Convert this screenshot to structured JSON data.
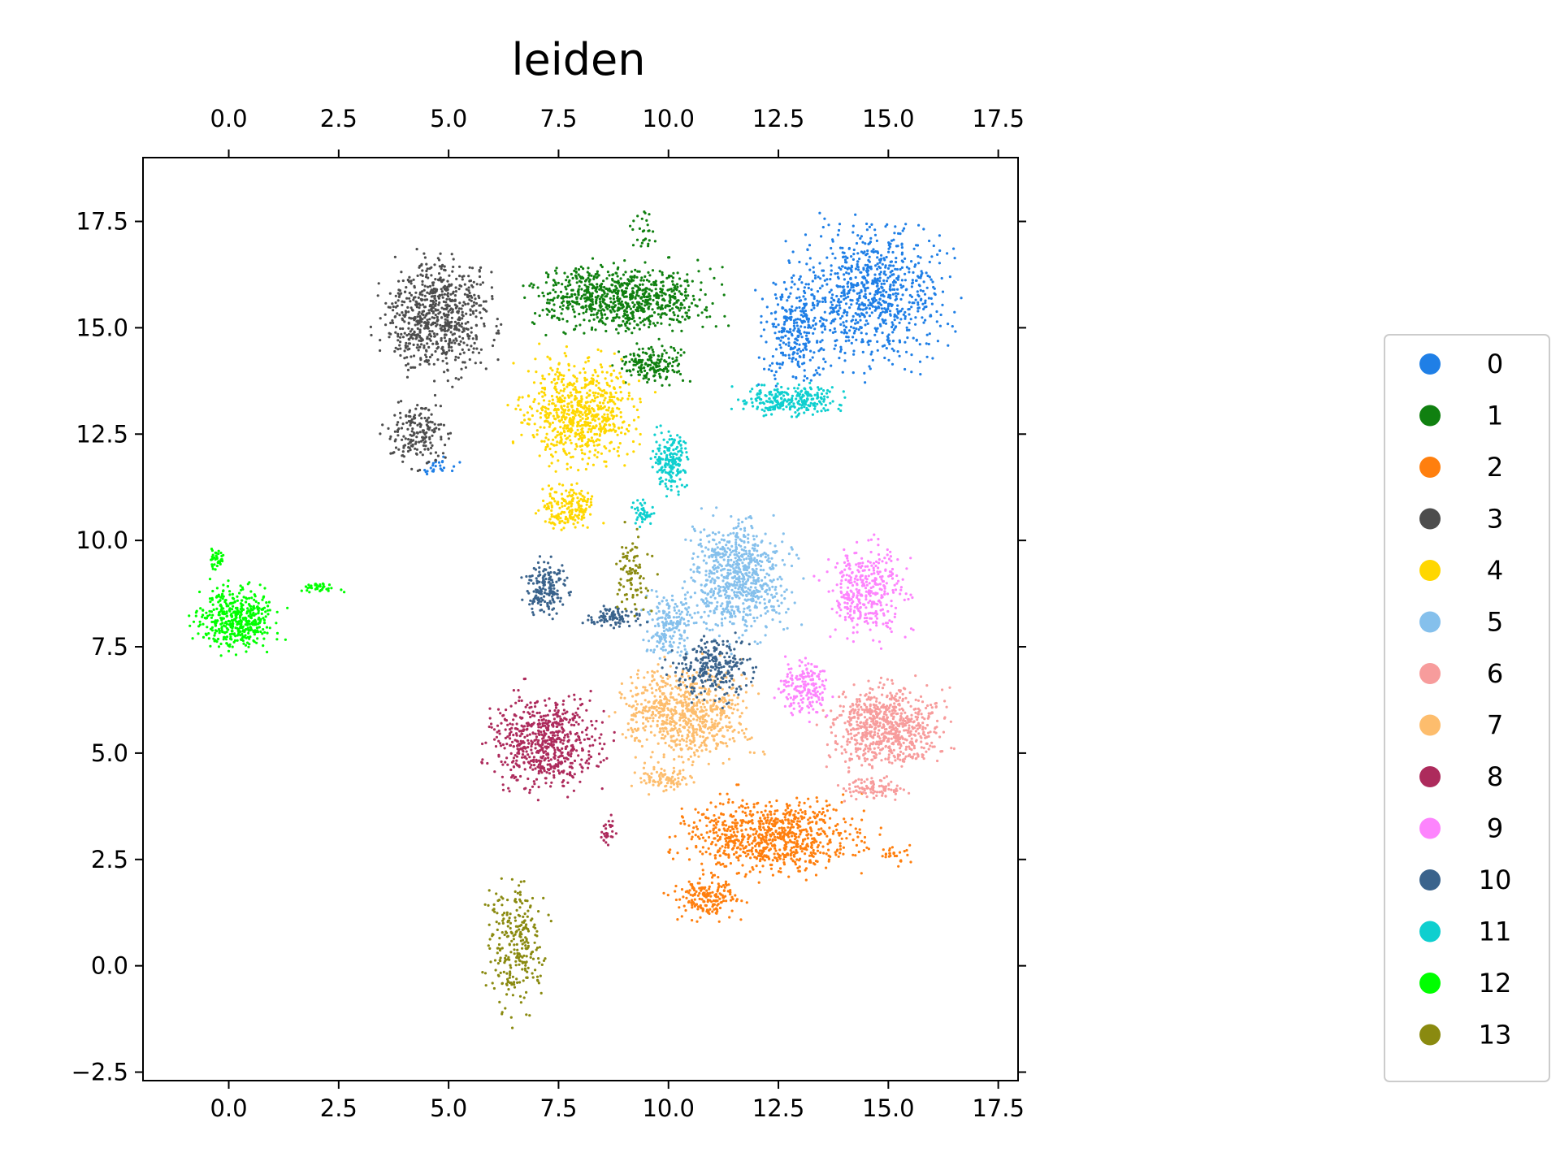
{
  "chart_data": {
    "type": "scatter",
    "title": "leiden",
    "xlabel": "",
    "ylabel": "",
    "xlim": [
      -1.95,
      17.95
    ],
    "ylim": [
      -2.7,
      19.0
    ],
    "x_ticks": [
      0.0,
      2.5,
      5.0,
      7.5,
      10.0,
      12.5,
      15.0,
      17.5
    ],
    "x_tick_labels": [
      "0.0",
      "2.5",
      "5.0",
      "7.5",
      "10.0",
      "12.5",
      "15.0",
      "17.5"
    ],
    "y_ticks": [
      -2.5,
      0.0,
      2.5,
      5.0,
      7.5,
      10.0,
      12.5,
      15.0,
      17.5
    ],
    "y_tick_labels": [
      "−2.5",
      "0.0",
      "2.5",
      "5.0",
      "7.5",
      "10.0",
      "12.5",
      "15.0",
      "17.5"
    ],
    "x_axis_position": "top-and-bottom",
    "grid": false,
    "legend_placement": "right",
    "series": [
      {
        "name": "0",
        "color": "#1f7fe6",
        "regions": [
          {
            "x": [
              12.3,
              16.9
            ],
            "y": [
              13.6,
              18.0
            ],
            "weight": 9
          },
          {
            "x": [
              11.8,
              14.0
            ],
            "y": [
              13.2,
              16.5
            ],
            "weight": 3
          },
          {
            "x": [
              4.2,
              5.4
            ],
            "y": [
              11.5,
              12.1
            ],
            "weight": 0.3
          }
        ]
      },
      {
        "name": "1",
        "color": "#108010",
        "regions": [
          {
            "x": [
              6.2,
              11.7
            ],
            "y": [
              14.6,
              16.8
            ],
            "weight": 9
          },
          {
            "x": [
              8.6,
              10.6
            ],
            "y": [
              13.5,
              14.8
            ],
            "weight": 2
          },
          {
            "x": [
              9.0,
              9.8
            ],
            "y": [
              16.6,
              18.0
            ],
            "weight": 0.3
          }
        ]
      },
      {
        "name": "2",
        "color": "#ff7f0e",
        "regions": [
          {
            "x": [
              9.6,
              15.2
            ],
            "y": [
              1.8,
              4.3
            ],
            "weight": 9
          },
          {
            "x": [
              9.8,
              12.0
            ],
            "y": [
              0.9,
              2.2
            ],
            "weight": 2
          },
          {
            "x": [
              14.6,
              15.6
            ],
            "y": [
              2.3,
              3.0
            ],
            "weight": 0.3
          }
        ]
      },
      {
        "name": "3",
        "color": "#4d4d4d",
        "regions": [
          {
            "x": [
              3.0,
              6.5
            ],
            "y": [
              13.5,
              17.1
            ],
            "weight": 8
          },
          {
            "x": [
              3.4,
              5.2
            ],
            "y": [
              11.4,
              13.6
            ],
            "weight": 2
          }
        ]
      },
      {
        "name": "4",
        "color": "#ffd700",
        "regions": [
          {
            "x": [
              6.2,
              9.8
            ],
            "y": [
              11.3,
              14.8
            ],
            "weight": 8
          },
          {
            "x": [
              6.9,
              8.6
            ],
            "y": [
              10.0,
              11.5
            ],
            "weight": 2
          }
        ]
      },
      {
        "name": "5",
        "color": "#85c0ec",
        "regions": [
          {
            "x": [
              10.0,
              13.2
            ],
            "y": [
              7.2,
              11.0
            ],
            "weight": 8
          },
          {
            "x": [
              9.2,
              10.8
            ],
            "y": [
              7.0,
              9.0
            ],
            "weight": 2
          }
        ]
      },
      {
        "name": "6",
        "color": "#f79c9c",
        "regions": [
          {
            "x": [
              13.2,
              16.7
            ],
            "y": [
              4.3,
              7.0
            ],
            "weight": 8
          },
          {
            "x": [
              13.6,
              15.8
            ],
            "y": [
              3.8,
              4.5
            ],
            "weight": 1
          }
        ]
      },
      {
        "name": "7",
        "color": "#fdbd6d",
        "regions": [
          {
            "x": [
              8.4,
              12.4
            ],
            "y": [
              4.4,
              7.5
            ],
            "weight": 8
          },
          {
            "x": [
              9.0,
              10.8
            ],
            "y": [
              4.0,
              4.8
            ],
            "weight": 1
          }
        ]
      },
      {
        "name": "8",
        "color": "#ad2b5c",
        "regions": [
          {
            "x": [
              5.5,
              9.0
            ],
            "y": [
              3.7,
              6.8
            ],
            "weight": 7
          },
          {
            "x": [
              8.4,
              8.9
            ],
            "y": [
              2.6,
              3.7
            ],
            "weight": 0.3
          }
        ]
      },
      {
        "name": "9",
        "color": "#fd84fd",
        "regions": [
          {
            "x": [
              13.2,
              15.8
            ],
            "y": [
              7.3,
              10.3
            ],
            "weight": 4
          },
          {
            "x": [
              12.3,
              13.9
            ],
            "y": [
              5.6,
              7.5
            ],
            "weight": 2
          }
        ]
      },
      {
        "name": "10",
        "color": "#3a638c",
        "regions": [
          {
            "x": [
              6.5,
              7.9
            ],
            "y": [
              8.0,
              9.8
            ],
            "weight": 2
          },
          {
            "x": [
              7.8,
              9.8
            ],
            "y": [
              7.9,
              8.5
            ],
            "weight": 1
          },
          {
            "x": [
              9.8,
              12.2
            ],
            "y": [
              6.0,
              8.0
            ],
            "weight": 3
          }
        ]
      },
      {
        "name": "11",
        "color": "#0fcfcf",
        "regions": [
          {
            "x": [
              11.2,
              14.4
            ],
            "y": [
              12.8,
              13.8
            ],
            "weight": 3
          },
          {
            "x": [
              9.5,
              10.6
            ],
            "y": [
              10.8,
              13.0
            ],
            "weight": 2
          },
          {
            "x": [
              9.0,
              9.8
            ],
            "y": [
              10.2,
              11.2
            ],
            "weight": 0.5
          }
        ]
      },
      {
        "name": "12",
        "color": "#00ff00",
        "regions": [
          {
            "x": [
              -1.0,
              1.4
            ],
            "y": [
              7.1,
              9.2
            ],
            "weight": 5
          },
          {
            "x": [
              -0.5,
              0.0
            ],
            "y": [
              9.2,
              9.9
            ],
            "weight": 0.4
          },
          {
            "x": [
              1.3,
              2.7
            ],
            "y": [
              8.7,
              9.1
            ],
            "weight": 0.4
          }
        ]
      },
      {
        "name": "13",
        "color": "#8a8a10",
        "regions": [
          {
            "x": [
              5.6,
              7.5
            ],
            "y": [
              -1.6,
              2.5
            ],
            "weight": 3
          },
          {
            "x": [
              8.6,
              9.8
            ],
            "y": [
              7.8,
              10.6
            ],
            "weight": 1
          }
        ]
      }
    ]
  }
}
